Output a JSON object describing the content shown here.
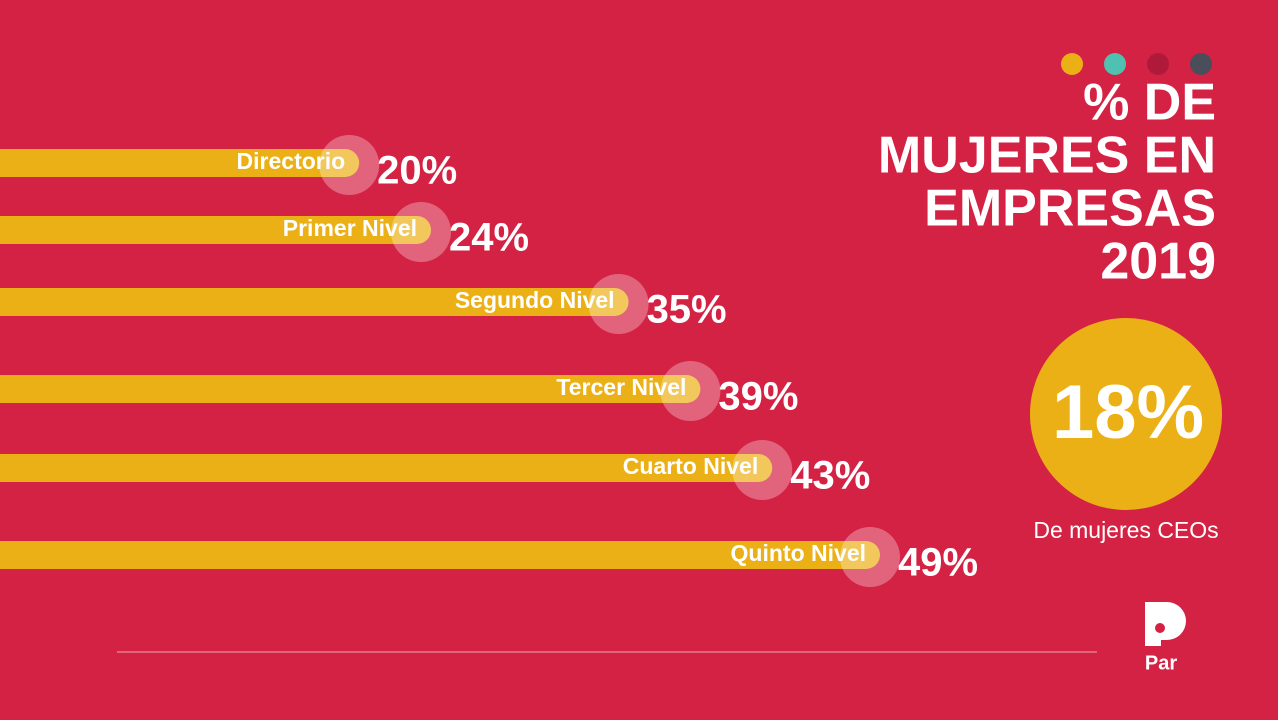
{
  "chart_data": {
    "type": "bar",
    "orientation": "horizontal",
    "title": [
      "% DE",
      "MUJERES EN",
      "EMPRESAS",
      "2019"
    ],
    "categories": [
      "Directorio",
      "Primer Nivel",
      "Segundo Nivel",
      "Tercer Nivel",
      "Cuarto Nivel",
      "Quinto Nivel"
    ],
    "values": [
      20,
      24,
      35,
      39,
      43,
      49
    ],
    "value_labels": [
      "20%",
      "24%",
      "35%",
      "39%",
      "43%",
      "49%"
    ],
    "color": "#ecb017",
    "highlight": {
      "value": 18,
      "value_label": "18%",
      "caption": "De mujeres CEOs",
      "color": "#ecb017"
    },
    "logo": "Par"
  }
}
